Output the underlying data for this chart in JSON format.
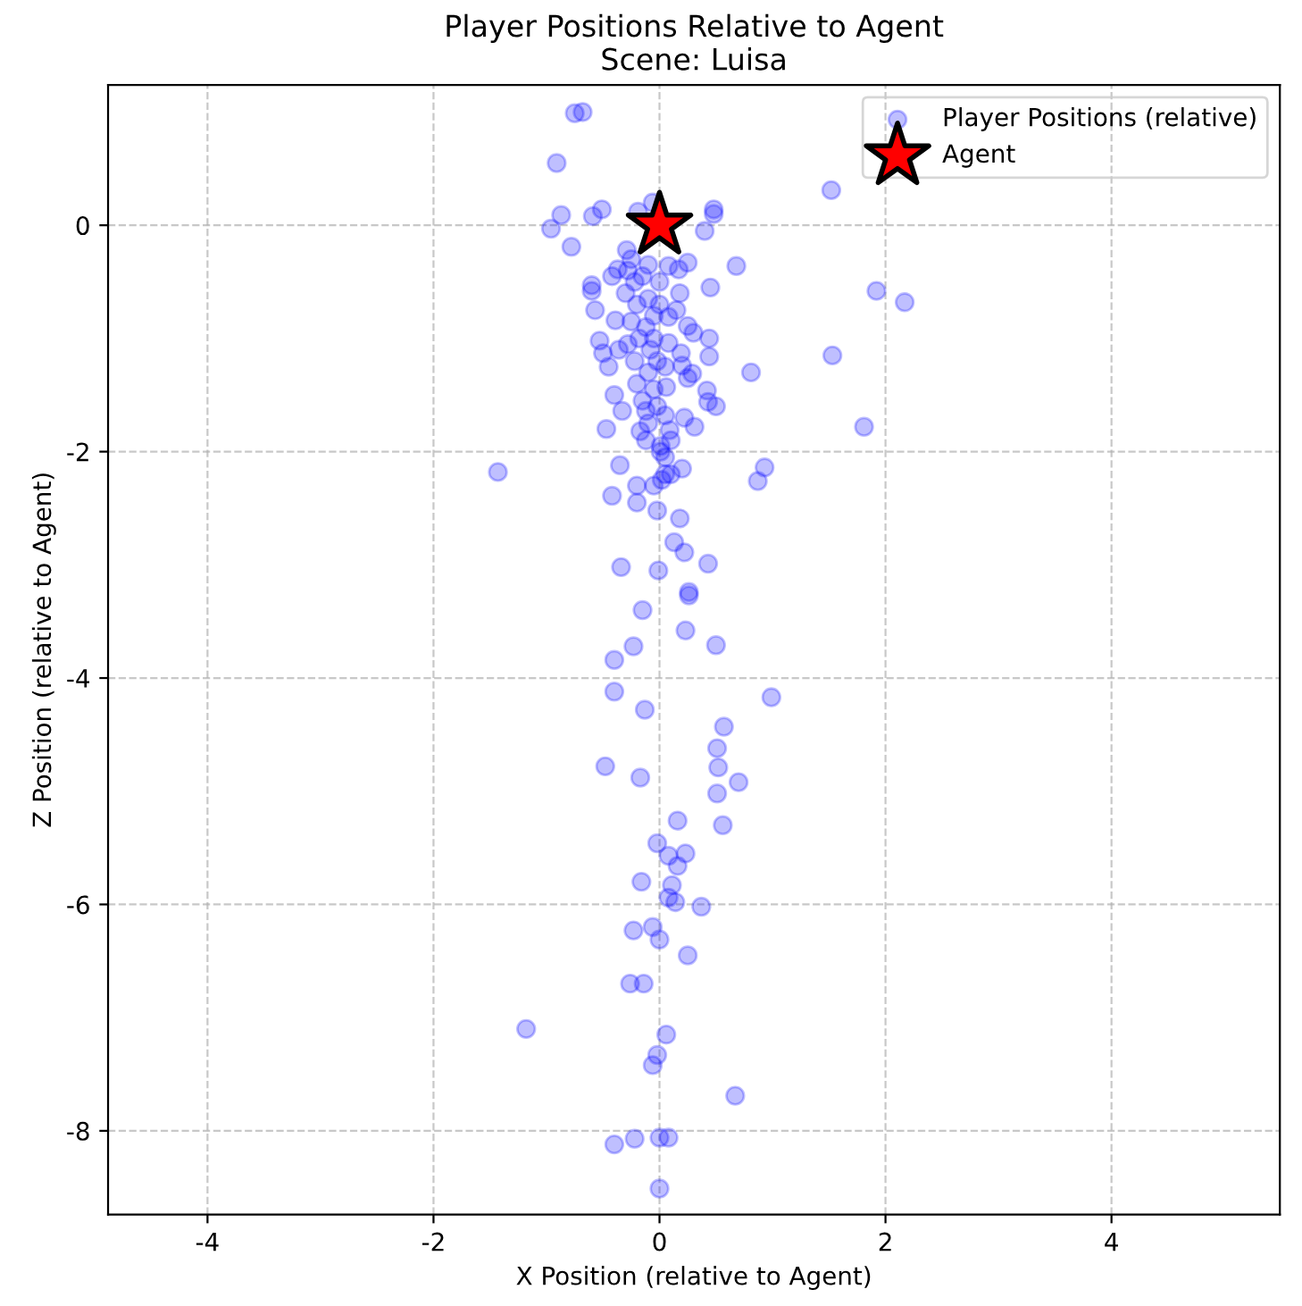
{
  "chart_data": {
    "type": "scatter",
    "title": "Player Positions Relative to Agent",
    "subtitle": "Scene: Luisa",
    "xlabel": "X Position (relative to Agent)",
    "ylabel": "Z Position (relative to Agent)",
    "xlim": [
      -4.88,
      5.49
    ],
    "ylim": [
      -8.74,
      1.24
    ],
    "xticks": [
      -4,
      -2,
      0,
      2,
      4
    ],
    "yticks": [
      -8,
      -6,
      -4,
      -2,
      0
    ],
    "grid": true,
    "legend": "top right",
    "series": [
      {
        "name": "Player Positions (relative)",
        "color": "#0000ff",
        "marker": "circle",
        "x": [
          -0.75,
          -0.68,
          -0.91,
          -0.87,
          -0.96,
          -0.78,
          -0.59,
          -0.51,
          -0.06,
          0.48,
          0.48,
          0.4,
          1.52,
          0.68,
          1.92,
          2.17,
          1.53,
          1.81,
          0.93,
          0.87,
          -1.43,
          0.81,
          0.45,
          0.44,
          0.42,
          0.43,
          0.5,
          0.31,
          0.44,
          0.25,
          0.29,
          0.19,
          0.2,
          0.25,
          0.18,
          0.17,
          0.08,
          0.25,
          0.08,
          0.08,
          0.05,
          0.06,
          0.05,
          0.09,
          0.01,
          0.01,
          -0.39,
          -0.36,
          -0.33,
          -0.17,
          -0.12,
          -0.6,
          -0.6,
          -0.57,
          -0.53,
          -0.5,
          -0.4,
          -0.47,
          -0.29,
          -0.37,
          -0.19,
          -0.28,
          -0.22,
          -0.15,
          -0.3,
          -0.2,
          -0.1,
          -0.25,
          -0.12,
          -0.05,
          -0.28,
          -0.18,
          -0.08,
          -0.22,
          -0.1,
          -0.02,
          -0.2,
          -0.05,
          -0.15,
          -0.02,
          -0.1,
          -0.25,
          -0.1,
          0.0,
          0.0,
          -0.05,
          -0.12,
          0.05,
          0.02,
          0.1,
          -0.35,
          0.1,
          0.2,
          -0.2,
          -0.05,
          0.05,
          0.3,
          0.15,
          -0.45,
          0.22,
          -0.42,
          -0.42,
          -0.2,
          -0.02,
          0.18,
          0.13,
          0.22,
          0.43,
          -0.34,
          -0.01,
          0.26,
          0.26,
          -0.15,
          0.23,
          -0.23,
          0.5,
          -0.4,
          -0.4,
          0.99,
          -0.13,
          0.57,
          0.51,
          -0.48,
          0.52,
          -0.17,
          0.7,
          0.51,
          0.16,
          0.56,
          -0.02,
          0.08,
          0.23,
          0.16,
          -0.16,
          0.11,
          0.08,
          0.14,
          0.37,
          -0.23,
          -0.06,
          0.0,
          0.25,
          -0.26,
          -0.14,
          -1.18,
          0.06,
          -0.02,
          -0.06,
          0.67,
          -0.4,
          -0.22,
          0.0,
          0.08,
          0.0
        ],
        "values": [
          0.99,
          1.0,
          0.55,
          0.09,
          -0.03,
          -0.19,
          0.08,
          0.14,
          0.2,
          0.14,
          0.1,
          -0.05,
          0.31,
          -0.36,
          -0.58,
          -0.68,
          -1.15,
          -1.78,
          -2.14,
          -2.26,
          -2.18,
          -1.3,
          -0.55,
          -1.0,
          -1.46,
          -1.56,
          -1.6,
          -1.78,
          -1.16,
          -1.35,
          -1.31,
          -1.13,
          -1.24,
          -0.33,
          -0.6,
          -0.39,
          -0.36,
          -0.89,
          -0.81,
          -1.04,
          -1.25,
          -1.43,
          -1.68,
          -1.81,
          -1.95,
          -2.0,
          -0.84,
          -1.1,
          -1.64,
          -1.82,
          -1.64,
          -0.53,
          -0.58,
          -0.75,
          -1.02,
          -1.13,
          -1.5,
          -1.8,
          -0.22,
          -0.39,
          0.12,
          -0.4,
          -0.5,
          -0.45,
          -0.6,
          -0.7,
          -0.65,
          -0.85,
          -0.9,
          -0.8,
          -1.05,
          -1.0,
          -1.1,
          -1.2,
          -1.3,
          -1.2,
          -1.4,
          -1.45,
          -1.55,
          -1.6,
          -1.75,
          -0.3,
          -0.35,
          -0.5,
          -0.7,
          -1.0,
          -1.9,
          -2.2,
          -2.25,
          -2.2,
          -2.12,
          -1.9,
          -2.15,
          -2.3,
          -2.3,
          -2.05,
          -0.95,
          -0.75,
          -1.25,
          -1.7,
          -0.45,
          -2.39,
          -2.45,
          -2.52,
          -2.59,
          -2.8,
          -2.89,
          -2.99,
          -3.02,
          -3.05,
          -3.24,
          -3.27,
          -3.4,
          -3.58,
          -3.72,
          -3.71,
          -3.84,
          -4.12,
          -4.17,
          -4.28,
          -4.43,
          -4.62,
          -4.78,
          -4.79,
          -4.88,
          -4.92,
          -5.02,
          -5.26,
          -5.3,
          -5.46,
          -5.57,
          -5.55,
          -5.66,
          -5.8,
          -5.83,
          -5.94,
          -5.98,
          -6.02,
          -6.23,
          -6.2,
          -6.31,
          -6.45,
          -6.7,
          -6.7,
          -7.1,
          -7.15,
          -7.33,
          -7.42,
          -7.69,
          -8.12,
          -8.07,
          -8.06,
          -8.06,
          -8.51
        ]
      },
      {
        "name": "Agent",
        "color": "#ff0000",
        "marker": "star",
        "x": [
          0
        ],
        "values": [
          0
        ]
      }
    ]
  }
}
